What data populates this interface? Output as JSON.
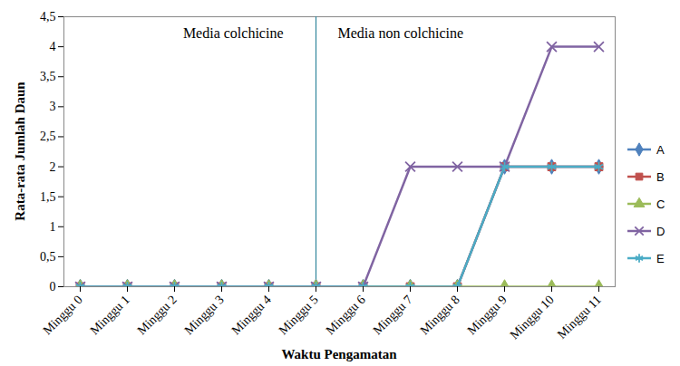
{
  "chart_data": {
    "type": "line",
    "x_label": "Waktu Pengamatan",
    "y_label": "Rata-rata Jumlah Daun",
    "categories": [
      "Minggu 0",
      "Minggu 1",
      "Minggu 2",
      "Minggu 3",
      "Minggu 4",
      "Minggu 5",
      "Minggu 6",
      "Minggu 7",
      "Minggu 8",
      "Minggu 9",
      "Minggu 10",
      "Minggu 11"
    ],
    "series": [
      {
        "name": "A",
        "color": "#4f81bd",
        "marker": "diamond",
        "values": [
          0,
          0,
          0,
          0,
          0,
          0,
          0,
          0,
          0,
          2,
          2,
          2
        ]
      },
      {
        "name": "B",
        "color": "#c0504d",
        "marker": "square",
        "values": [
          0,
          0,
          0,
          0,
          0,
          0,
          0,
          0,
          0,
          2,
          2,
          2
        ]
      },
      {
        "name": "C",
        "color": "#9bbb59",
        "marker": "triangle",
        "values": [
          0,
          0,
          0,
          0,
          0,
          0,
          0,
          0,
          0,
          0,
          0,
          0
        ]
      },
      {
        "name": "D",
        "color": "#8064a2",
        "marker": "x",
        "values": [
          0,
          0,
          0,
          0,
          0,
          0,
          0,
          2,
          2,
          2,
          4,
          4
        ]
      },
      {
        "name": "E",
        "color": "#4bacc6",
        "marker": "asterisk",
        "values": [
          0,
          0,
          0,
          0,
          0,
          0,
          0,
          0,
          0,
          2,
          2,
          2
        ]
      }
    ],
    "ylim": [
      0,
      4.5
    ],
    "yticks": [
      0,
      {
        "value": 0.5,
        "label": "0,5"
      },
      1,
      {
        "value": 1.5,
        "label": "1,5"
      },
      2,
      {
        "value": 2.5,
        "label": "2,5"
      },
      3,
      {
        "value": 3.5,
        "label": "3,5"
      },
      4,
      {
        "value": 4.5,
        "label": "4,5"
      }
    ],
    "annotations": [
      "Media colchicine",
      "Media non colchicine"
    ],
    "divider": "Minggu 5",
    "legend": "right",
    "grid": false
  }
}
